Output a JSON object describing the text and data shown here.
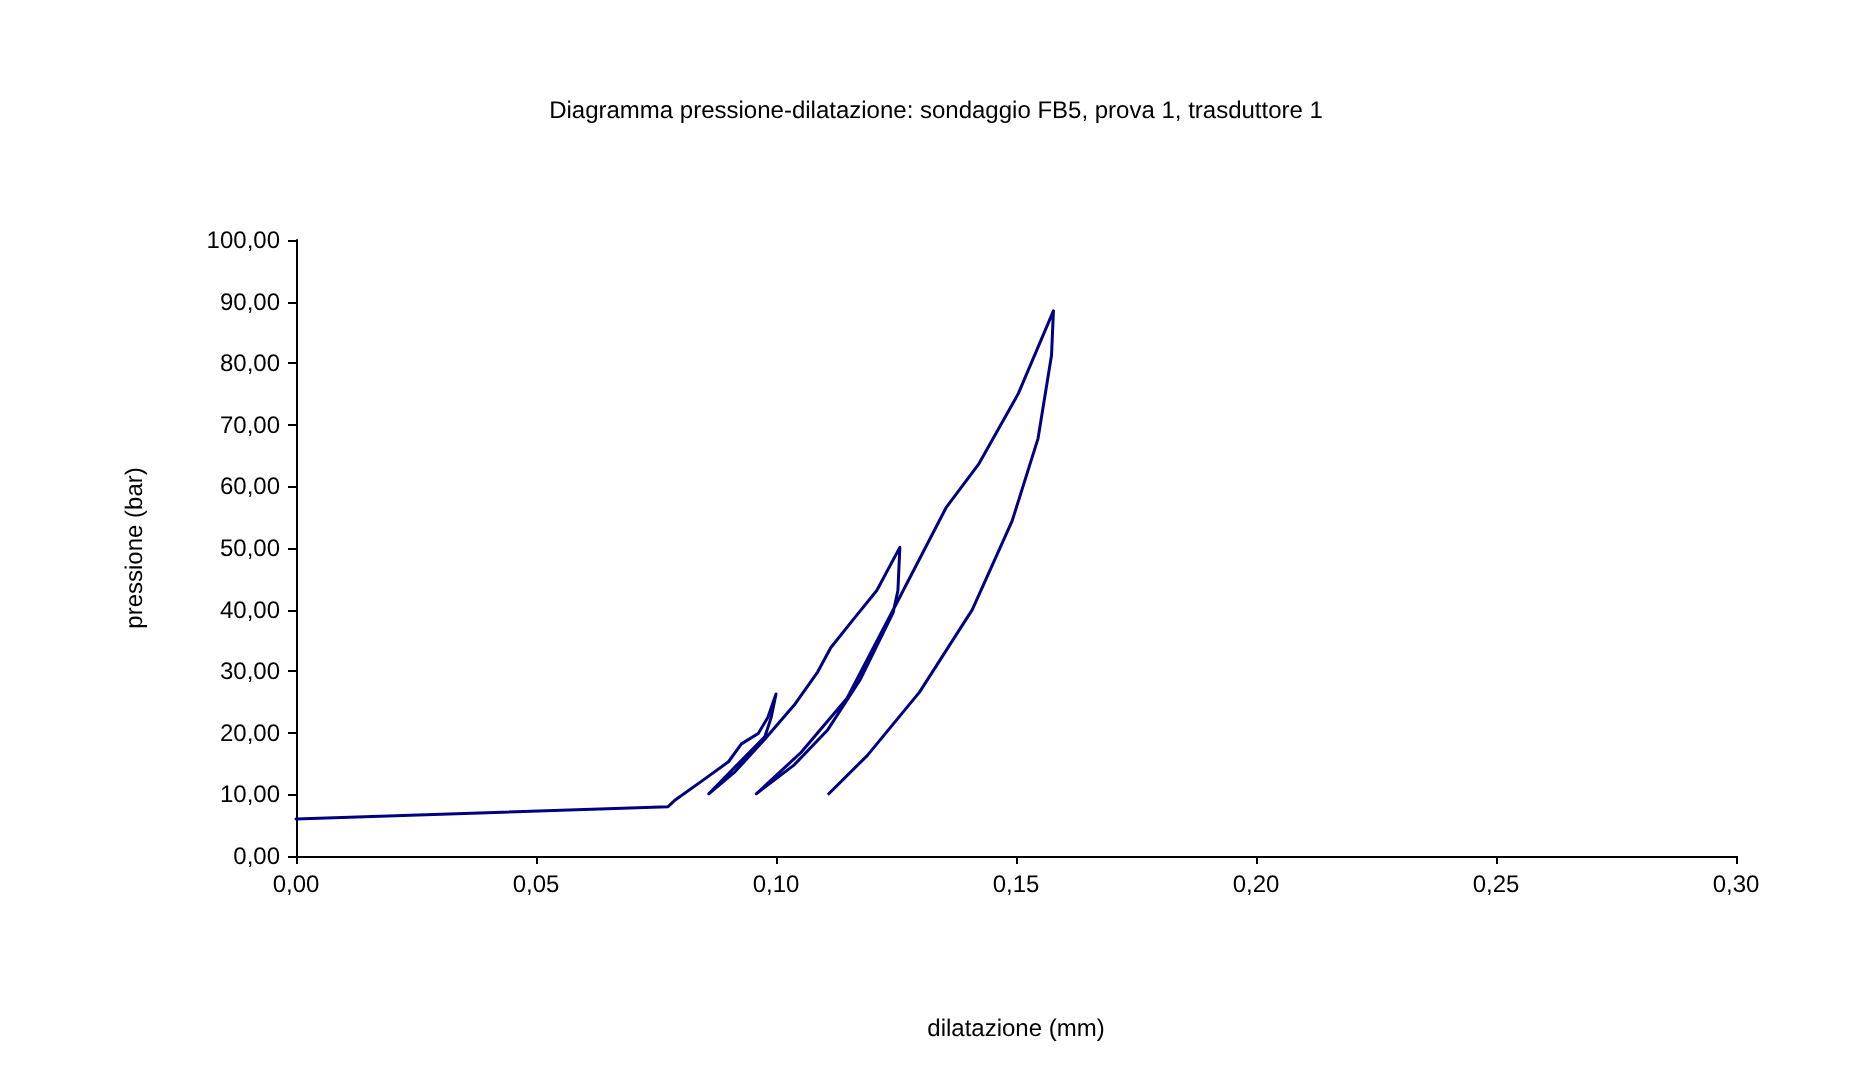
{
  "chart_data": {
    "type": "line",
    "title": "Diagramma pressione-dilatazione: sondaggio FB5, prova 1, trasduttore 1",
    "xlabel": "dilatazione (mm)",
    "ylabel": "pressione (bar)",
    "xlim": [
      0,
      0.3
    ],
    "ylim": [
      0,
      100
    ],
    "xticks": [
      {
        "value": 0,
        "label": "0,00"
      },
      {
        "value": 0.05,
        "label": "0,05"
      },
      {
        "value": 0.1,
        "label": "0,10"
      },
      {
        "value": 0.15,
        "label": "0,15"
      },
      {
        "value": 0.2,
        "label": "0,20"
      },
      {
        "value": 0.25,
        "label": "0,25"
      },
      {
        "value": 0.3,
        "label": "0,30"
      }
    ],
    "yticks": [
      {
        "value": 0,
        "label": "0,00"
      },
      {
        "value": 10,
        "label": "10,00"
      },
      {
        "value": 20,
        "label": "20,00"
      },
      {
        "value": 30,
        "label": "30,00"
      },
      {
        "value": 40,
        "label": "40,00"
      },
      {
        "value": 50,
        "label": "50,00"
      },
      {
        "value": 60,
        "label": "60,00"
      },
      {
        "value": 70,
        "label": "70,00"
      },
      {
        "value": 80,
        "label": "80,00"
      },
      {
        "value": 90,
        "label": "90,00"
      },
      {
        "value": 100,
        "label": "100,00"
      }
    ],
    "grid": false,
    "marker": "none",
    "line_style": "solid",
    "series": [
      {
        "color": "#000080",
        "x": [
          0,
          0.0775,
          0.079,
          0.0846,
          0.0901,
          0.0928,
          0.0963,
          0.0983,
          0.1,
          0.099,
          0.0977,
          0.086,
          0.0915,
          0.0977,
          0.1038,
          0.1087,
          0.1114,
          0.1162,
          0.121,
          0.1258,
          0.1254,
          0.1244,
          0.1176,
          0.1107,
          0.1038,
          0.0959,
          0.1052,
          0.1148,
          0.1251,
          0.1354,
          0.1423,
          0.1505,
          0.1578,
          0.1574,
          0.1546,
          0.1492,
          0.1409,
          0.1299,
          0.119,
          0.111
        ],
        "values": [
          6,
          8,
          9.1,
          12.2,
          15.3,
          18.2,
          19.9,
          22.5,
          26.3,
          22.5,
          19.4,
          10.1,
          13.7,
          19,
          24.5,
          29.9,
          33.8,
          38.5,
          43.1,
          50.1,
          43.1,
          39.5,
          28.7,
          20.4,
          14.8,
          10.1,
          16.8,
          25.6,
          41,
          56.5,
          63.7,
          75.1,
          88.5,
          81.3,
          67.8,
          54.4,
          40,
          26.6,
          16.3,
          10.1
        ]
      }
    ]
  }
}
